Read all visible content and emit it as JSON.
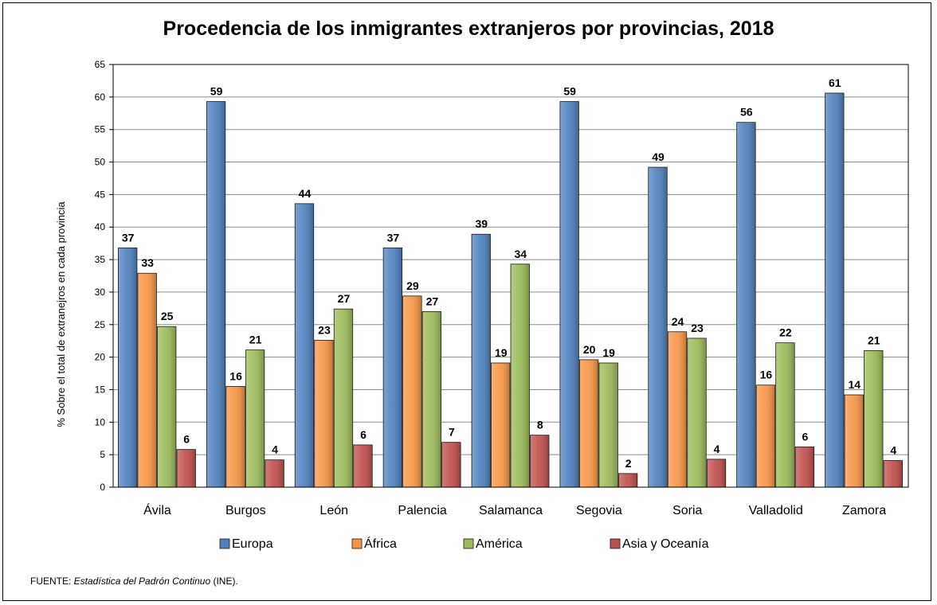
{
  "chart_data": {
    "type": "bar",
    "title": "Procedencia de los inmigrantes extranjeros por provincias, 2018",
    "ylabel": "% Sobre el total de extranejros en cada provincia",
    "xlabel": "",
    "ylim": [
      0,
      65
    ],
    "ytick_step": 5,
    "grid": true,
    "legend_position": "bottom",
    "categories": [
      "Ávila",
      "Burgos",
      "León",
      "Palencia",
      "Salamanca",
      "Segovia",
      "Soria",
      "Valladolid",
      "Zamora"
    ],
    "series": [
      {
        "name": "Europa",
        "color": "#4F81BD",
        "values": [
          36.8,
          59.3,
          43.6,
          36.8,
          38.9,
          59.3,
          49.2,
          56.1,
          60.6
        ],
        "labels": [
          "37",
          "59",
          "44",
          "37",
          "39",
          "59",
          "49",
          "56",
          "61"
        ]
      },
      {
        "name": "África",
        "color": "#F79646",
        "values": [
          32.9,
          15.5,
          22.6,
          29.4,
          19.1,
          19.6,
          23.9,
          15.7,
          14.2
        ],
        "labels": [
          "33",
          "16",
          "23",
          "29",
          "19",
          "20",
          "24",
          "16",
          "14"
        ]
      },
      {
        "name": "América",
        "color": "#9BBB59",
        "values": [
          24.7,
          21.1,
          27.4,
          27.0,
          34.3,
          19.1,
          22.9,
          22.2,
          21.0
        ],
        "labels": [
          "25",
          "21",
          "27",
          "27",
          "34",
          "19",
          "23",
          "22",
          "21"
        ]
      },
      {
        "name": "Asia y Oceanía",
        "color": "#C0504D",
        "values": [
          5.8,
          4.2,
          6.5,
          6.9,
          8.0,
          2.1,
          4.3,
          6.2,
          4.1
        ],
        "labels": [
          "6",
          "4",
          "6",
          "7",
          "8",
          "2",
          "4",
          "6",
          "4"
        ]
      }
    ]
  },
  "source": {
    "prefix": "FUENTE: ",
    "italic": "Estadística  del Padrón  Continuo",
    "suffix": " (INE)."
  }
}
